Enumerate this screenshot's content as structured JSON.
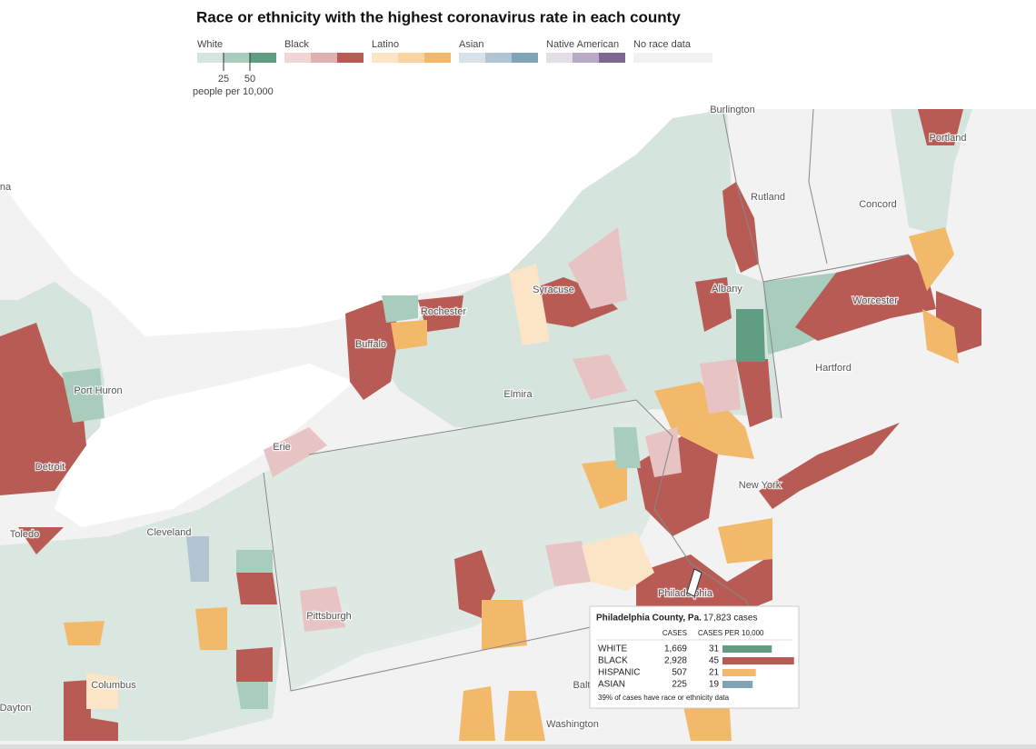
{
  "title": "Race or ethnicity with the highest coronavirus rate in each county",
  "legend": {
    "groups": [
      {
        "label": "White",
        "colors": [
          "#d5e4dd",
          "#a9cdbd",
          "#5f9e83"
        ]
      },
      {
        "label": "Black",
        "colors": [
          "#f0d6d6",
          "#dfb0b0",
          "#b95b55"
        ]
      },
      {
        "label": "Latino",
        "colors": [
          "#fce5c6",
          "#f9d3a1",
          "#f3b96b"
        ]
      },
      {
        "label": "Asian",
        "colors": [
          "#d8e1e8",
          "#b0c4d1",
          "#80a3b5"
        ]
      },
      {
        "label": "Native American",
        "colors": [
          "#e3dfe8",
          "#b8a9c4",
          "#7e6892"
        ]
      },
      {
        "label": "No race data",
        "colors": [
          "#f1f1f1"
        ]
      }
    ],
    "ticks": [
      25,
      50
    ],
    "unit": "people per 10,000"
  },
  "places": [
    "na",
    "Burlington",
    "Rutland",
    "Concord",
    "Portland",
    "Syracuse",
    "Rochester",
    "Buffalo",
    "Albany",
    "Worcester",
    "Hartford",
    "Port Huron",
    "Elmira",
    "Erie",
    "Detroit",
    "New York",
    "Toledo",
    "Cleveland",
    "Pittsburgh",
    "Philadelphia",
    "Columbus",
    "Dayton",
    "Balt",
    "Washington"
  ],
  "tooltip": {
    "title": "Philadelphia County, Pa.",
    "total": "17,823 cases",
    "columns": [
      "CASES",
      "CASES PER 10,000"
    ],
    "rows": [
      {
        "group": "WHITE",
        "cases": "1,669",
        "rate": 31,
        "color": "#5f9e83"
      },
      {
        "group": "BLACK",
        "cases": "2,928",
        "rate": 45,
        "color": "#b95b55"
      },
      {
        "group": "HISPANIC",
        "cases": "507",
        "rate": 21,
        "color": "#f3b96b"
      },
      {
        "group": "ASIAN",
        "cases": "225",
        "rate": 19,
        "color": "#80a3b5"
      }
    ],
    "note": "39% of cases have race or ethnicity data"
  }
}
